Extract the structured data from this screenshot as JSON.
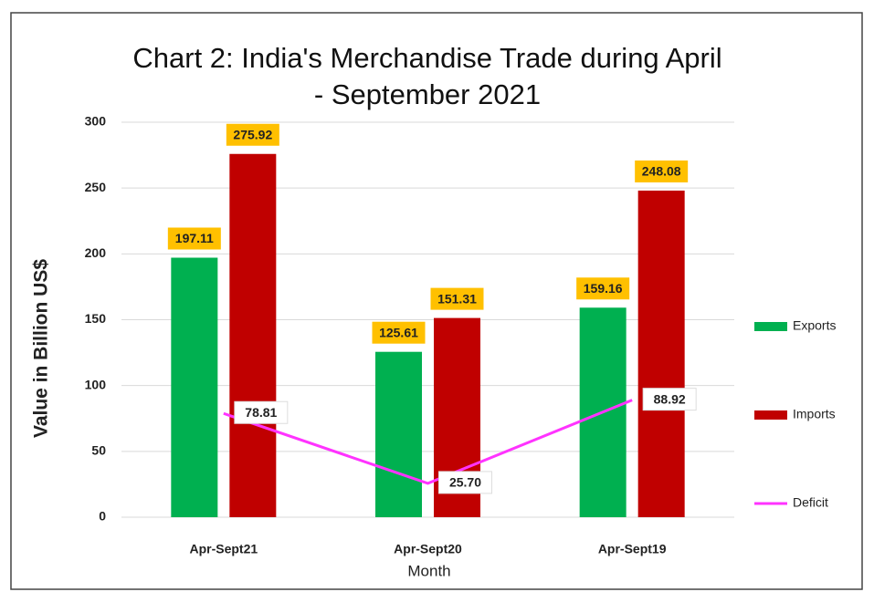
{
  "chart_data": {
    "type": "bar",
    "title": [
      "Chart 2: India's Merchandise Trade during April",
      "-  September 2021"
    ],
    "x_label": "Month",
    "y_label": "Value in Billion US$",
    "categories": [
      "Apr-Sept21",
      "Apr-Sept20",
      "Apr-Sept19"
    ],
    "series": [
      {
        "name": "Exports",
        "type": "bar",
        "color": "#00b050",
        "values": [
          197.11,
          125.61,
          159.16
        ],
        "value_labels": [
          "197.11",
          "125.61",
          "159.16"
        ]
      },
      {
        "name": "Imports",
        "type": "bar",
        "color": "#c00000",
        "values": [
          275.92,
          151.31,
          248.08
        ],
        "value_labels": [
          "275.92",
          "151.31",
          "248.08"
        ]
      },
      {
        "name": "Deficit",
        "type": "line",
        "color": "#ff33ff",
        "values": [
          78.81,
          25.7,
          88.92
        ],
        "value_labels": [
          "78.81",
          "25.70",
          "88.92"
        ]
      }
    ],
    "ylim": [
      0,
      300
    ],
    "yticks": [
      0,
      50,
      100,
      150,
      200,
      250,
      300
    ],
    "grid": true,
    "legend": "right"
  }
}
